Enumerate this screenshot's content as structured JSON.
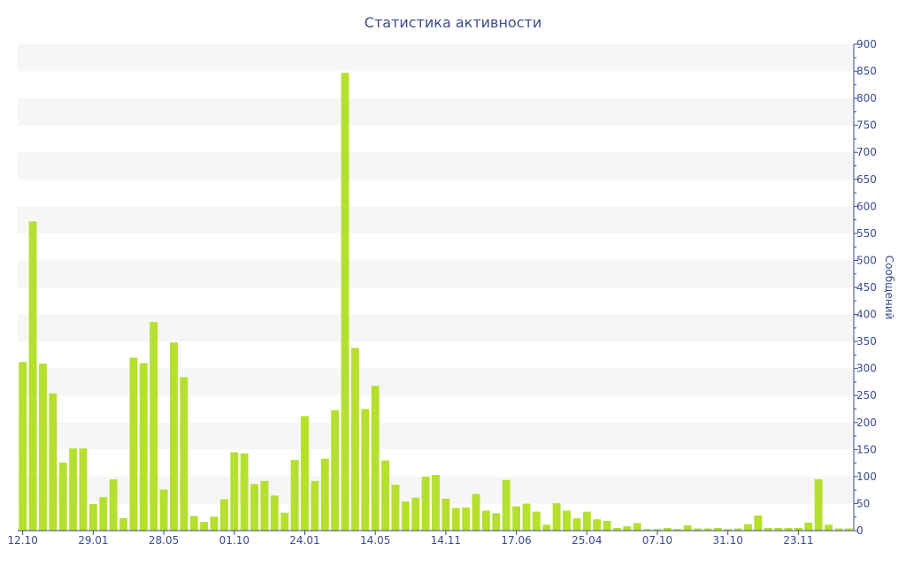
{
  "chart_data": {
    "type": "bar",
    "title": "Статистика активности",
    "ylabel": "Сообщений",
    "ylim": [
      0,
      900
    ],
    "y_ticks": [
      0,
      50,
      100,
      150,
      200,
      250,
      300,
      350,
      400,
      450,
      500,
      550,
      600,
      650,
      700,
      750,
      800,
      850,
      900
    ],
    "y_axis_side": "right",
    "grid": "alternating horizontal bands",
    "bar_color": "#b5e02e",
    "text_color": "#3b4a8c",
    "x_tick_labels": [
      {
        "index": 0,
        "label": "12.10"
      },
      {
        "index": 7,
        "label": "29.01"
      },
      {
        "index": 14,
        "label": "28.05"
      },
      {
        "index": 21,
        "label": "01.10"
      },
      {
        "index": 28,
        "label": "24.01"
      },
      {
        "index": 35,
        "label": "14.05"
      },
      {
        "index": 42,
        "label": "14.11"
      },
      {
        "index": 49,
        "label": "17.06"
      },
      {
        "index": 56,
        "label": "25.04"
      },
      {
        "index": 63,
        "label": "07.10"
      },
      {
        "index": 70,
        "label": "31.10"
      },
      {
        "index": 77,
        "label": "23.11"
      }
    ],
    "values": [
      312,
      572,
      309,
      254,
      126,
      152,
      152,
      49,
      62,
      95,
      23,
      320,
      310,
      386,
      76,
      348,
      284,
      27,
      16,
      26,
      58,
      145,
      143,
      86,
      92,
      65,
      33,
      131,
      212,
      92,
      133,
      223,
      847,
      338,
      225,
      268,
      130,
      85,
      54,
      61,
      100,
      103,
      59,
      42,
      43,
      68,
      37,
      32,
      94,
      45,
      50,
      35,
      11,
      51,
      37,
      23,
      35,
      21,
      18,
      5,
      8,
      14,
      3,
      3,
      5,
      3,
      10,
      4,
      4,
      5,
      3,
      4,
      12,
      28,
      5,
      5,
      5,
      5,
      15,
      95,
      11,
      4,
      4
    ]
  }
}
